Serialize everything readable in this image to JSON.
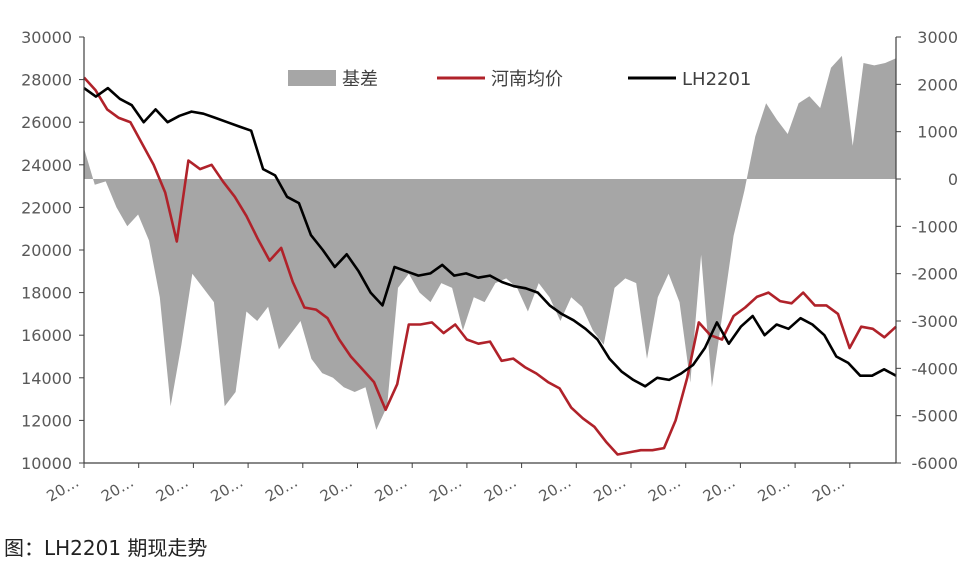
{
  "caption": "图：LH2201 期现走势",
  "colors": {
    "basis": "#a6a6a6",
    "henan": "#b0222a",
    "lh": "#000000",
    "axis": "#404040"
  },
  "chart_data": {
    "type": "line",
    "x_tick_labels": [
      "20…",
      "20…",
      "20…",
      "20…",
      "20…",
      "20…",
      "20…",
      "20…",
      "20…",
      "20…",
      "20…",
      "20…",
      "20…",
      "20…",
      "20…"
    ],
    "y_left": {
      "ticks": [
        "10000",
        "12000",
        "14000",
        "16000",
        "18000",
        "20000",
        "22000",
        "24000",
        "26000",
        "28000",
        "30000"
      ],
      "ylim": [
        10000,
        30000
      ]
    },
    "y_right": {
      "ticks": [
        "-6000",
        "-5000",
        "-4000",
        "-3000",
        "-2000",
        "-1000",
        "0",
        "1000",
        "2000",
        "3000"
      ],
      "ylim": [
        -6000,
        3000
      ]
    },
    "legend_position": "top",
    "grid": false,
    "series": [
      {
        "name": "基差",
        "kind": "area",
        "axis": "right",
        "values": [
          650,
          -120,
          -50,
          -600,
          -1000,
          -750,
          -1300,
          -2500,
          -4800,
          -3500,
          -2000,
          -2300,
          -2600,
          -4800,
          -4500,
          -2800,
          -3000,
          -2700,
          -3600,
          -3300,
          -3000,
          -3800,
          -4100,
          -4200,
          -4400,
          -4500,
          -4400,
          -5300,
          -4800,
          -2300,
          -2000,
          -2400,
          -2600,
          -2200,
          -2300,
          -3200,
          -2500,
          -2600,
          -2200,
          -2100,
          -2300,
          -2800,
          -2200,
          -2500,
          -3000,
          -2500,
          -2700,
          -3200,
          -3500,
          -2300,
          -2100,
          -2200,
          -3800,
          -2500,
          -2000,
          -2600,
          -4300,
          -1600,
          -4400,
          -2800,
          -1200,
          -250,
          900,
          1600,
          1250,
          950,
          1600,
          1750,
          1500,
          2350,
          2600,
          700,
          2450,
          2400,
          2450,
          2550
        ]
      },
      {
        "name": "河南均价",
        "kind": "line",
        "axis": "left",
        "values": [
          28100,
          27500,
          26600,
          26200,
          26000,
          25000,
          24000,
          22700,
          20400,
          24200,
          23800,
          24000,
          23200,
          22500,
          21600,
          20500,
          19500,
          20100,
          18500,
          17300,
          17200,
          16800,
          15800,
          15000,
          14400,
          13800,
          12500,
          13700,
          16500,
          16500,
          16600,
          16100,
          16500,
          15800,
          15600,
          15700,
          14800,
          14900,
          14500,
          14200,
          13800,
          13500,
          12600,
          12100,
          11700,
          11000,
          10400,
          10500,
          10600,
          10600,
          10700,
          12000,
          14000,
          16600,
          16000,
          15800,
          16900,
          17300,
          17800,
          18000,
          17600,
          17500,
          18000,
          17400,
          17400,
          17000,
          15400,
          16400,
          16300,
          15900,
          16400
        ]
      },
      {
        "name": "LH2201",
        "kind": "line",
        "axis": "left",
        "values": [
          27600,
          27200,
          27600,
          27100,
          26800,
          26000,
          26600,
          26000,
          26300,
          26500,
          26400,
          26200,
          26000,
          25800,
          25600,
          23800,
          23500,
          22500,
          22200,
          20700,
          20000,
          19200,
          19800,
          19000,
          18000,
          17400,
          19200,
          19000,
          18800,
          18900,
          19300,
          18800,
          18900,
          18700,
          18800,
          18500,
          18300,
          18200,
          18000,
          17400,
          17000,
          16700,
          16300,
          15800,
          14900,
          14300,
          13900,
          13600,
          14000,
          13900,
          14200,
          14600,
          15400,
          16600,
          15600,
          16400,
          16900,
          16000,
          16500,
          16300,
          16800,
          16500,
          16000,
          15000,
          14700,
          14100,
          14100,
          14400,
          14100
        ]
      }
    ]
  }
}
